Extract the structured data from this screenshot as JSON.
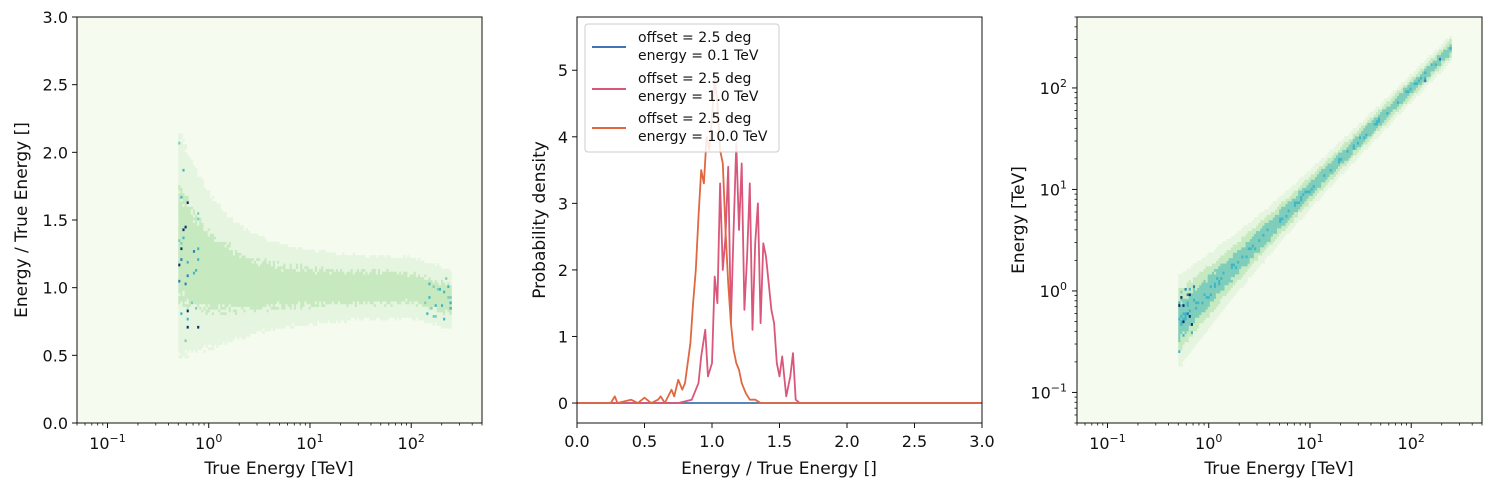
{
  "colors": {
    "hist_background": "#f5fbef",
    "hist_light": "#e5f5e0",
    "hist_mid": "#c7e9c0",
    "hist_teal": "#7fcdbb",
    "hist_teal_dark": "#41b6c4",
    "hist_blue": "#2c7fb8",
    "hist_navy": "#08306b",
    "line_blue": "#3f74b5",
    "line_pink": "#d9577a",
    "line_orange": "#e0673f"
  },
  "chart_data": [
    {
      "type": "heatmap",
      "xlabel": "True Energy [TeV]",
      "ylabel": "Energy / True Energy []",
      "xscale": "log",
      "xlim": [
        0.05,
        500
      ],
      "ylim": [
        0.0,
        3.0
      ],
      "xticks": [
        {
          "value": 0.1,
          "base": "10",
          "exp": "−1"
        },
        {
          "value": 1,
          "base": "10",
          "exp": "0"
        },
        {
          "value": 10,
          "base": "10",
          "exp": "1"
        },
        {
          "value": 100,
          "base": "10",
          "exp": "2"
        }
      ],
      "yticks": [
        {
          "value": 0.0,
          "label": "0.0"
        },
        {
          "value": 0.5,
          "label": "0.5"
        },
        {
          "value": 1.0,
          "label": "1.0"
        },
        {
          "value": 1.5,
          "label": "1.5"
        },
        {
          "value": 2.0,
          "label": "2.0"
        },
        {
          "value": 2.5,
          "label": "2.5"
        },
        {
          "value": 3.0,
          "label": "3.0"
        }
      ],
      "description_band": {
        "x_range_TeV": [
          0.5,
          250
        ],
        "center_ratio_low_energy": 1.35,
        "center_ratio_mid": 1.0,
        "center_ratio_high_energy": 0.9,
        "spread_low_energy": 0.45,
        "spread_high_energy": 0.2
      },
      "grid": false
    },
    {
      "type": "line",
      "xlabel": "Energy / True Energy []",
      "ylabel": "Probability density",
      "xlim": [
        0.0,
        3.0
      ],
      "ylim": [
        -0.3,
        5.8
      ],
      "xticks": [
        {
          "value": 0.0,
          "label": "0.0"
        },
        {
          "value": 0.5,
          "label": "0.5"
        },
        {
          "value": 1.0,
          "label": "1.0"
        },
        {
          "value": 1.5,
          "label": "1.5"
        },
        {
          "value": 2.0,
          "label": "2.0"
        },
        {
          "value": 2.5,
          "label": "2.5"
        },
        {
          "value": 3.0,
          "label": "3.0"
        }
      ],
      "yticks": [
        {
          "value": 0,
          "label": "0"
        },
        {
          "value": 1,
          "label": "1"
        },
        {
          "value": 2,
          "label": "2"
        },
        {
          "value": 3,
          "label": "3"
        },
        {
          "value": 4,
          "label": "4"
        },
        {
          "value": 5,
          "label": "5"
        }
      ],
      "legend_position": "top-left",
      "series": [
        {
          "name_line1": "offset = 2.5 deg",
          "name_line2": "energy = 0.1 TeV",
          "color": "#3f74b5",
          "x": [
            0.0,
            0.8,
            1.0,
            1.25,
            3.0
          ],
          "y": [
            0,
            0,
            0,
            0,
            0
          ]
        },
        {
          "name_line1": "offset = 2.5 deg",
          "name_line2": "energy = 1.0 TeV",
          "color": "#d9577a",
          "x": [
            0.0,
            0.75,
            0.85,
            0.9,
            0.92,
            0.95,
            0.97,
            1.0,
            1.02,
            1.04,
            1.06,
            1.08,
            1.1,
            1.12,
            1.14,
            1.16,
            1.18,
            1.2,
            1.22,
            1.24,
            1.26,
            1.28,
            1.3,
            1.32,
            1.34,
            1.36,
            1.38,
            1.4,
            1.42,
            1.44,
            1.46,
            1.48,
            1.5,
            1.52,
            1.55,
            1.58,
            1.6,
            1.62,
            1.65,
            3.0
          ],
          "y": [
            0,
            0,
            0.05,
            0.3,
            0.7,
            1.1,
            0.4,
            0.6,
            1.9,
            1.5,
            3.3,
            2.0,
            2.5,
            3.55,
            1.2,
            2.6,
            3.9,
            2.6,
            3.6,
            1.4,
            2.2,
            3.3,
            1.1,
            2.4,
            3.0,
            1.2,
            2.4,
            2.2,
            1.8,
            1.4,
            1.2,
            0.6,
            0.4,
            0.7,
            0.1,
            0.4,
            0.75,
            0.05,
            0,
            0
          ]
        },
        {
          "name_line1": "offset = 2.5 deg",
          "name_line2": "energy = 10.0 TeV",
          "color": "#e0673f",
          "x": [
            0.0,
            0.25,
            0.28,
            0.3,
            0.4,
            0.45,
            0.5,
            0.55,
            0.6,
            0.62,
            0.65,
            0.7,
            0.72,
            0.75,
            0.78,
            0.8,
            0.82,
            0.84,
            0.86,
            0.88,
            0.9,
            0.92,
            0.94,
            0.96,
            0.98,
            1.0,
            1.02,
            1.04,
            1.06,
            1.08,
            1.1,
            1.12,
            1.14,
            1.16,
            1.18,
            1.2,
            1.22,
            1.25,
            1.28,
            1.32,
            1.36,
            1.4,
            3.0
          ],
          "y": [
            0,
            0,
            0.1,
            0,
            0.05,
            0,
            0.08,
            0,
            0.05,
            0.1,
            0,
            0.2,
            0.1,
            0.35,
            0.2,
            0.3,
            0.6,
            0.9,
            1.5,
            2.0,
            2.8,
            3.5,
            3.3,
            4.0,
            3.8,
            4.3,
            4.9,
            4.5,
            3.8,
            3.6,
            2.6,
            1.8,
            1.2,
            0.8,
            0.6,
            0.5,
            0.3,
            0.15,
            0.05,
            0.05,
            0,
            0,
            0
          ]
        }
      ],
      "grid": false
    },
    {
      "type": "heatmap",
      "xlabel": "True Energy [TeV]",
      "ylabel": "Energy [TeV]",
      "xscale": "log",
      "yscale": "log",
      "xlim": [
        0.05,
        500
      ],
      "ylim": [
        0.05,
        500
      ],
      "xticks": [
        {
          "value": 0.1,
          "base": "10",
          "exp": "−1"
        },
        {
          "value": 1,
          "base": "10",
          "exp": "0"
        },
        {
          "value": 10,
          "base": "10",
          "exp": "1"
        },
        {
          "value": 100,
          "base": "10",
          "exp": "2"
        }
      ],
      "yticks": [
        {
          "value": 0.1,
          "base": "10",
          "exp": "−1"
        },
        {
          "value": 1,
          "base": "10",
          "exp": "0"
        },
        {
          "value": 10,
          "base": "10",
          "exp": "1"
        },
        {
          "value": 100,
          "base": "10",
          "exp": "2"
        }
      ],
      "description_band": {
        "x_range_TeV": [
          0.5,
          250
        ],
        "diagonal": true
      },
      "grid": false
    }
  ]
}
